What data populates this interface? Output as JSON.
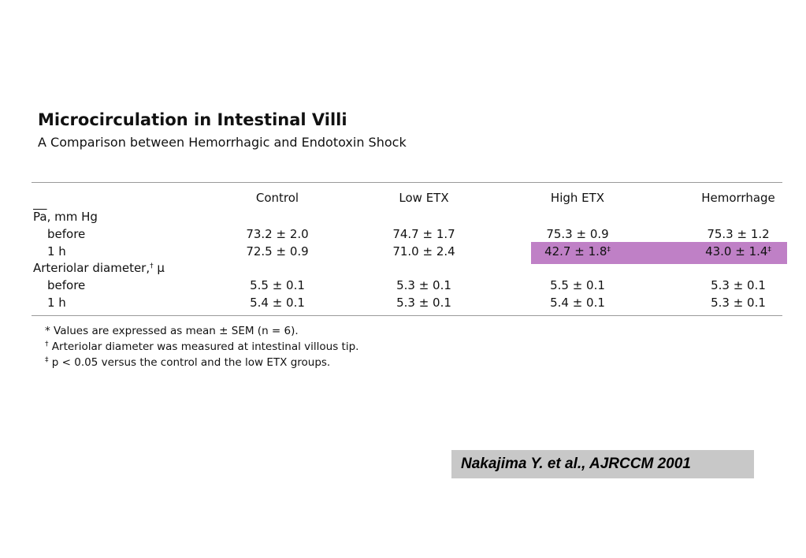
{
  "title": "Microcirculation in Intestinal Villi",
  "subtitle": "A Comparison between Hemorrhagic and Endotoxin Shock",
  "table": {
    "columns": [
      "Control",
      "Low ETX",
      "High ETX",
      "Hemorrhage"
    ],
    "group1": {
      "label_symbol": "Pa",
      "label_rest": ", mm Hg",
      "rows": [
        {
          "label": "before",
          "values": [
            "73.2 ± 2.0",
            "74.7 ± 1.7",
            "75.3 ± 0.9",
            "75.3 ± 1.2"
          ]
        },
        {
          "label": "1 h",
          "values": [
            "72.5 ± 0.9",
            "71.0 ± 2.4",
            "42.7 ± 1.8",
            "43.0 ± 1.4"
          ],
          "marks": [
            "",
            "",
            "‡",
            "‡"
          ]
        }
      ]
    },
    "group2": {
      "label": "Arteriolar diameter,",
      "label_mark": "†",
      "label_unit": " μ",
      "rows": [
        {
          "label": "before",
          "values": [
            "5.5 ± 0.1",
            "5.3 ± 0.1",
            "5.5 ± 0.1",
            "5.3 ± 0.1"
          ]
        },
        {
          "label": "1 h",
          "values": [
            "5.4 ± 0.1",
            "5.3 ± 0.1",
            "5.4 ± 0.1",
            "5.3 ± 0.1"
          ]
        }
      ]
    },
    "highlight_color": "#bf80c6"
  },
  "footnotes": [
    {
      "mark": "*",
      "text": " Values are expressed as mean ± SEM (n = 6)."
    },
    {
      "mark": "†",
      "text": " Arteriolar diameter was measured at intestinal villous tip."
    },
    {
      "mark": "‡",
      "text": " p < 0.05 versus the control and the low ETX groups."
    }
  ],
  "citation": "Nakajima Y. et al., AJRCCM 2001"
}
